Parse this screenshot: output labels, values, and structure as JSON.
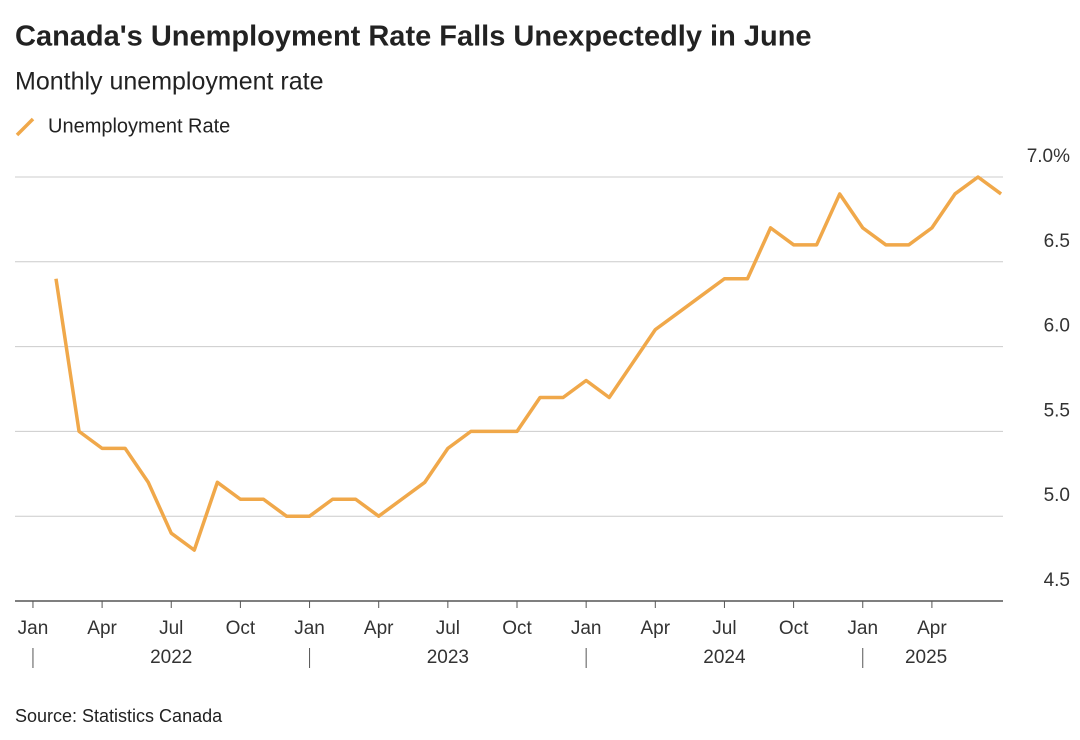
{
  "chart_data": {
    "type": "line",
    "title": "Canada's Unemployment Rate Falls Unexpectedly in June",
    "subtitle": "Monthly unemployment rate",
    "source": "Source: Statistics Canada",
    "x": [
      "2022-01",
      "2022-02",
      "2022-03",
      "2022-04",
      "2022-05",
      "2022-06",
      "2022-07",
      "2022-08",
      "2022-09",
      "2022-10",
      "2022-11",
      "2022-12",
      "2023-01",
      "2023-02",
      "2023-03",
      "2023-04",
      "2023-05",
      "2023-06",
      "2023-07",
      "2023-08",
      "2023-09",
      "2023-10",
      "2023-11",
      "2023-12",
      "2024-01",
      "2024-02",
      "2024-03",
      "2024-04",
      "2024-05",
      "2024-06",
      "2024-07",
      "2024-08",
      "2024-09",
      "2024-10",
      "2024-11",
      "2024-12",
      "2025-01",
      "2025-02",
      "2025-03",
      "2025-04",
      "2025-05",
      "2025-06"
    ],
    "series": [
      {
        "name": "Unemployment Rate",
        "color": "#f0a84a",
        "values": [
          6.4,
          5.5,
          5.4,
          5.4,
          5.2,
          4.9,
          4.8,
          5.2,
          5.1,
          5.1,
          5.0,
          5.0,
          5.1,
          5.1,
          5.0,
          5.1,
          5.2,
          5.4,
          5.5,
          5.5,
          5.5,
          5.7,
          5.7,
          5.8,
          5.7,
          5.9,
          6.1,
          6.2,
          6.3,
          6.4,
          6.4,
          6.7,
          6.6,
          6.6,
          6.9,
          6.7,
          6.6,
          6.6,
          6.7,
          6.9,
          7.0,
          6.9
        ]
      }
    ],
    "xticks": [
      {
        "value": "2022-01",
        "label": "Jan"
      },
      {
        "value": "2022-04",
        "label": "Apr"
      },
      {
        "value": "2022-07",
        "label": "Jul"
      },
      {
        "value": "2022-10",
        "label": "Oct"
      },
      {
        "value": "2023-01",
        "label": "Jan"
      },
      {
        "value": "2023-04",
        "label": "Apr"
      },
      {
        "value": "2023-07",
        "label": "Jul"
      },
      {
        "value": "2023-10",
        "label": "Oct"
      },
      {
        "value": "2024-01",
        "label": "Jan"
      },
      {
        "value": "2024-04",
        "label": "Apr"
      },
      {
        "value": "2024-07",
        "label": "Jul"
      },
      {
        "value": "2024-10",
        "label": "Oct"
      },
      {
        "value": "2025-01",
        "label": "Jan"
      },
      {
        "value": "2025-04",
        "label": "Apr"
      }
    ],
    "year_labels": [
      {
        "value": "2022-01",
        "label": "2022"
      },
      {
        "value": "2023-01",
        "label": "2023"
      },
      {
        "value": "2024-01",
        "label": "2024"
      },
      {
        "value": "2025-01",
        "label": "2025"
      }
    ],
    "ylim": [
      4.5,
      7.0
    ],
    "yticks": [
      4.5,
      {
        "value": 5,
        "label": "5.0"
      },
      5.5,
      {
        "value": 6,
        "label": "6.0"
      },
      6.5,
      {
        "value": 7,
        "label": "7.0%"
      }
    ],
    "grid": true,
    "legend": "top-left"
  }
}
